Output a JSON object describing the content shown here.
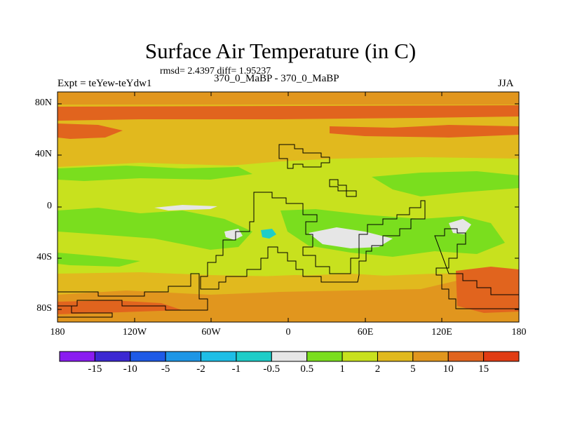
{
  "title": "Surface Air Temperature (in C)",
  "subtitle": "rmsd= 2.4397 diff= 1.95237",
  "left_label": "Expt = teYew-teYdw1",
  "center_label": "370_0_MaBP - 370_0_MaBP",
  "right_label": "JJA",
  "lat_ticks": [
    "80N",
    "40N",
    "0",
    "40S",
    "80S"
  ],
  "lon_ticks": [
    "180",
    "120W",
    "60W",
    "0",
    "60E",
    "120E",
    "180"
  ],
  "colorbar": {
    "labels": [
      "-15",
      "-10",
      "-5",
      "-2",
      "-1",
      "-0.5",
      "0.5",
      "1",
      "2",
      "5",
      "10",
      "15"
    ],
    "colors": [
      "#8a1cf0",
      "#3c28d2",
      "#1e5ae6",
      "#1e96e6",
      "#1ebee6",
      "#1ecdc8",
      "#e6e6e6",
      "#7ade1e",
      "#c8e11e",
      "#e1b91e",
      "#e1961e",
      "#e1641e",
      "#e13c14"
    ]
  },
  "legend_colors": {
    "orange": "#e1961e",
    "dark_orange": "#e1641e",
    "yellow_orange": "#e1b91e",
    "yellow_green": "#c8e11e",
    "green": "#7ade1e",
    "light_grey": "#e6e6e6",
    "cyan": "#1ecdc8"
  }
}
